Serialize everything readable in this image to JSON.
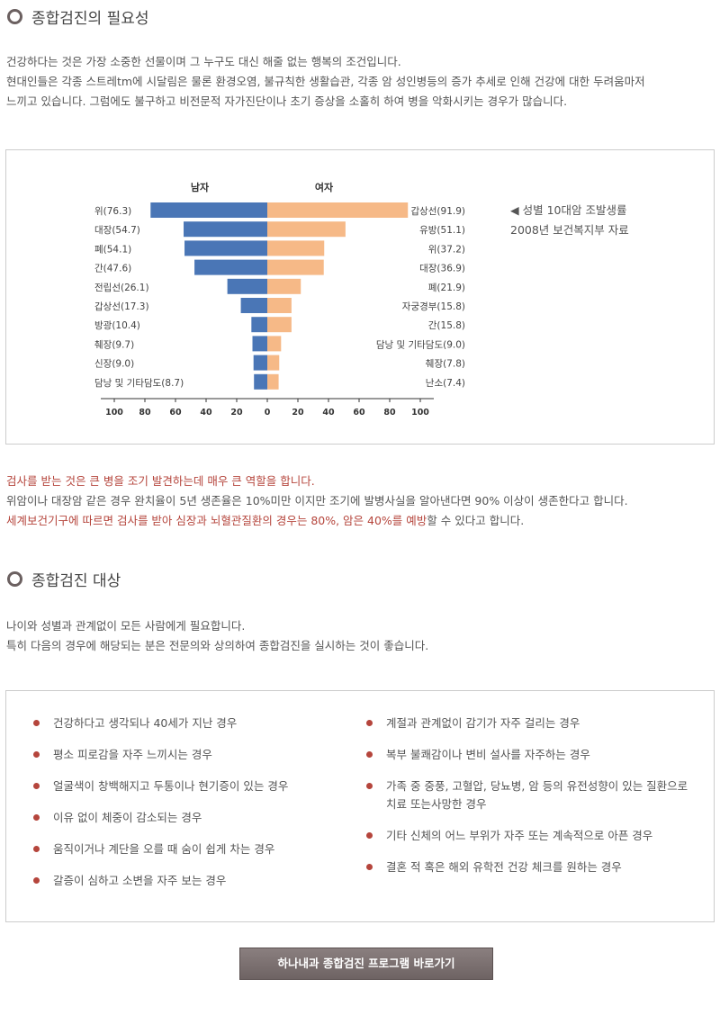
{
  "section1": {
    "title": "종합검진의 필요성",
    "lines": [
      "건강하다는 것은 가장 소중한 선물이며 그 누구도 대신 해줄 없는 행복의 조건입니다.",
      "현대인들은 각종 스트레tm에 시달림은 물론 환경오염, 불규칙한 생활습관, 각종 암 성인병등의 증가 추세로 인해 건강에 대한 두려움마저",
      "느끼고 있습니다. 그럼에도 불구하고 비전문적 자가진단이나 초기 증상을 소홀히 하여 병을 악화시키는 경우가 많습니다."
    ]
  },
  "chart_note": {
    "line1": "성별 10대암 조발생률",
    "line2": "2008년 보건복지부 자료",
    "icon": "left-triangle-icon"
  },
  "chart_data": {
    "type": "bar",
    "orientation": "horizontal-back-to-back",
    "series": [
      {
        "name": "남자",
        "color": "#4a76b6",
        "labels": [
          "위(76.3)",
          "대장(54.7)",
          "폐(54.1)",
          "간(47.6)",
          "전립선(26.1)",
          "갑상선(17.3)",
          "방광(10.4)",
          "췌장(9.7)",
          "신장(9.0)",
          "담낭 및 기타담도(8.7)"
        ],
        "values": [
          76.3,
          54.7,
          54.1,
          47.6,
          26.1,
          17.3,
          10.4,
          9.7,
          9.0,
          8.7
        ]
      },
      {
        "name": "여자",
        "color": "#f6b987",
        "labels": [
          "갑상선(91.9)",
          "유방(51.1)",
          "위(37.2)",
          "대장(36.9)",
          "폐(21.9)",
          "자궁경부(15.8)",
          "간(15.8)",
          "담낭 및 기타담도(9.0)",
          "췌장(7.8)",
          "난소(7.4)"
        ],
        "values": [
          91.9,
          51.1,
          37.2,
          36.9,
          21.9,
          15.8,
          15.8,
          9.0,
          7.8,
          7.4
        ]
      }
    ],
    "xticks": [
      "100",
      "80",
      "60",
      "40",
      "20",
      "0",
      "20",
      "40",
      "60",
      "80",
      "100"
    ],
    "xlim": [
      -100,
      100
    ]
  },
  "section1b": {
    "line1": "검사를 받는 것은 큰 병을 조기 발견하는데 매우 큰 역할을 합니다.",
    "line2": "위암이나 대장암 같은 경우 완치율이 5년 생존율은 10%미만 이지만 조기에 발병사실을 알아낸다면 90% 이상이 생존한다고 합니다.",
    "line3_highlight": "세계보건기구에 따르면 검사를 받아 심장과 뇌혈관질환의 경우는 80%, 암은 40%를 예방",
    "line3_rest": "할 수 있다고 합니다."
  },
  "section2": {
    "title": "종합검진 대상",
    "lines": [
      "나이와 성별과 관계없이 모든 사람에게 필요합니다.",
      "특히 다음의 경우에 해당되는 분은 전문의와 상의하여 종합검진을 실시하는 것이 좋습니다."
    ]
  },
  "targets": {
    "left": [
      "건강하다고 생각되나 40세가 지난 경우",
      "평소 피로감을 자주 느끼시는 경우",
      "얼굴색이 창백해지고 두통이나 현기증이 있는 경우",
      "이유 없이 체중이 감소되는 경우",
      "움직이거나 계단을 오를 때 숨이 쉽게 차는 경우",
      "갈증이 심하고 소변을 자주 보는 경우"
    ],
    "right": [
      "계절과 관계없이 감기가 자주 걸리는 경우",
      "복부 불쾌감이나 변비 설사를 자주하는 경우",
      "가족 중 중풍, 고혈압, 당뇨병, 암 등의 유전성향이 있는 질환으로\n치료 또는사망한 경우",
      "기타 신체의 어느 부위가 자주 또는 계속적으로 아픈 경우",
      "결혼 적 혹은 해외 유학전 건강 체크를 원하는 경우"
    ]
  },
  "cta": {
    "label": "하나내과 종합검진 프로그램 바로가기"
  },
  "colors": {
    "accent": "#b5453c",
    "male": "#4a76b6",
    "female": "#f6b987"
  }
}
